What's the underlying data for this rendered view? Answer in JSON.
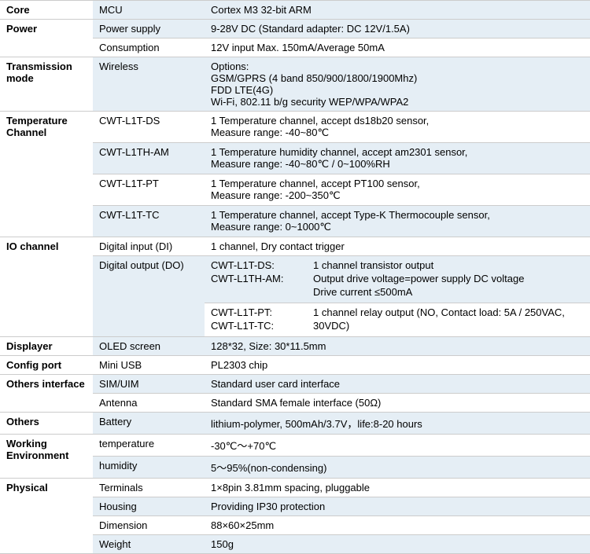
{
  "rows": {
    "core": {
      "cat": "Core",
      "sub": "MCU",
      "val": "Cortex M3 32-bit ARM"
    },
    "power1": {
      "cat": "Power",
      "sub": "Power supply",
      "val": "9-28V DC (Standard adapter: DC 12V/1.5A)"
    },
    "power2": {
      "sub": "Consumption",
      "val": "12V input Max. 150mA/Average 50mA"
    },
    "trans": {
      "cat": "Transmission mode",
      "sub": "Wireless",
      "l1": "Options:",
      "l2": "GSM/GPRS (4 band 850/900/1800/1900Mhz)",
      "l3": "FDD LTE(4G)",
      "l4": "Wi-Fi, 802.11 b/g security WEP/WPA/WPA2"
    },
    "tc1": {
      "cat": "Temperature Channel",
      "sub": "CWT-L1T-DS",
      "l1": "1 Temperature channel, accept ds18b20 sensor,",
      "l2": "Measure range: -40~80℃"
    },
    "tc2": {
      "sub": "CWT-L1TH-AM",
      "l1": "1 Temperature humidity channel, accept am2301 sensor,",
      "l2": "Measure range: -40~80℃  / 0~100%RH"
    },
    "tc3": {
      "sub": "CWT-L1T-PT",
      "l1": "1 Temperature channel, accept PT100 sensor,",
      "l2": "Measure range: -200~350℃"
    },
    "tc4": {
      "sub": "CWT-L1T-TC",
      "l1": "1 Temperature channel, accept Type-K Thermocouple sensor,",
      "l2": "Measure range: 0~1000℃"
    },
    "io_di": {
      "cat": "IO channel",
      "sub": "Digital input (DI)",
      "val": "1 channel, Dry contact trigger"
    },
    "io_do": {
      "sub": "Digital output (DO)",
      "k1": "CWT-L1T-DS:",
      "v1": "1 channel transistor output",
      "k2": "CWT-L1TH-AM:",
      "v2": "Output drive voltage=power supply DC voltage",
      "v3": "Drive current ≤500mA",
      "k4": "CWT-L1T-PT:",
      "v4": "1 channel relay output (NO, Contact load: 5A / 250VAC,",
      "k5": "CWT-L1T-TC:",
      "v5": "30VDC)"
    },
    "disp": {
      "cat": "Displayer",
      "sub": "OLED screen",
      "val": "128*32, Size: 30*11.5mm"
    },
    "cfg": {
      "cat": "Config port",
      "sub": "Mini USB",
      "val": "PL2303 chip"
    },
    "oi1": {
      "cat": "Others interface",
      "sub": "SIM/UIM",
      "val": "Standard user card interface"
    },
    "oi2": {
      "sub": "Antenna",
      "val": "Standard SMA female interface (50Ω)"
    },
    "oth": {
      "cat": "Others",
      "sub": "Battery",
      "val": "lithium-polymer, 500mAh/3.7V，life:8-20 hours"
    },
    "we1": {
      "cat": "Working Environment",
      "sub": "temperature",
      "val": "-30℃～+70℃"
    },
    "we2": {
      "sub": "humidity",
      "val": "5～95%(non-condensing)"
    },
    "ph1": {
      "cat": "Physical",
      "sub": "Terminals",
      "val": "1×8pin 3.81mm spacing, pluggable"
    },
    "ph2": {
      "sub": "Housing",
      "val": "Providing IP30 protection"
    },
    "ph3": {
      "sub": "Dimension",
      "val": "88×60×25mm"
    },
    "ph4": {
      "sub": "Weight",
      "val": "150g"
    }
  }
}
